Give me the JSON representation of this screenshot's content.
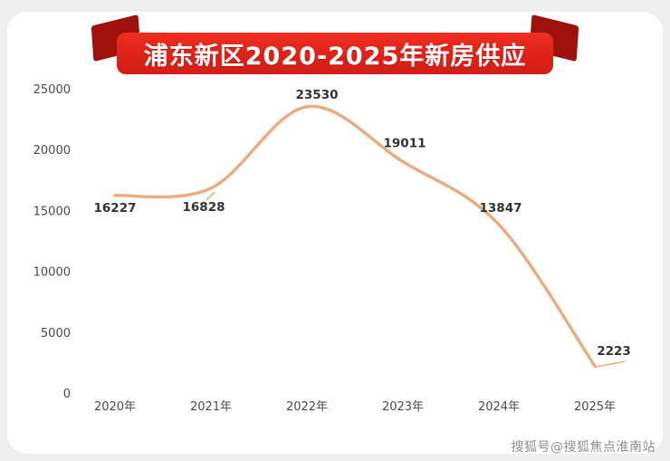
{
  "header": {
    "title": "浦东新区2020-2025年新房供应"
  },
  "footer": {
    "watermark": "搜狐号@搜狐焦点淮南站"
  },
  "colors": {
    "page_bg": "#efefef",
    "card_bg": "#ffffff",
    "banner_red": "#dc2118",
    "banner_fold_red": "#9e110d",
    "line": "#e9ad82",
    "data_label": "#333333",
    "axis_label": "#4a4a4a",
    "watermark_gray": "#8f8f8f"
  },
  "chart_data": {
    "type": "line",
    "title": "浦东新区2020-2025年新房供应",
    "categories": [
      "2020年",
      "2021年",
      "2022年",
      "2023年",
      "2024年",
      "2025年"
    ],
    "values": [
      16227,
      16828,
      23530,
      19011,
      13847,
      2223
    ],
    "xlabel": "",
    "ylabel": "",
    "ylim": [
      0,
      25000
    ],
    "yticks": [
      0,
      5000,
      10000,
      15000,
      20000,
      25000
    ],
    "smooth": true,
    "grid": false,
    "legend": "none",
    "line_color": "#e9ad82"
  }
}
